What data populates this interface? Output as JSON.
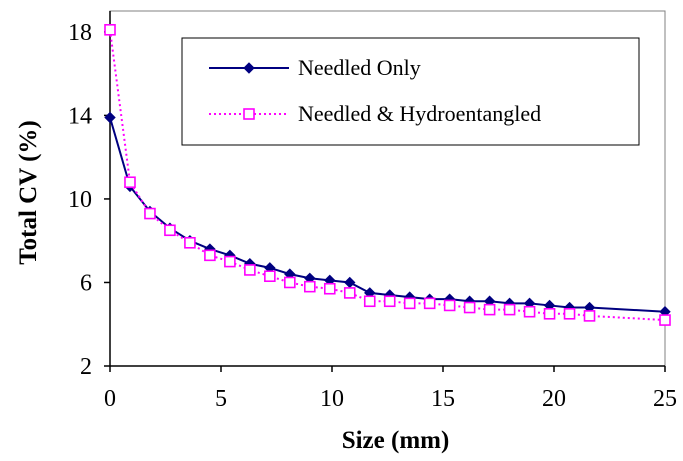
{
  "chart_data": {
    "type": "line",
    "title": "",
    "xlabel": "Size (mm)",
    "ylabel": "Total CV (%)",
    "xlim": [
      0,
      25
    ],
    "ylim": [
      2,
      19
    ],
    "xticks": [
      0,
      5,
      10,
      15,
      20,
      25
    ],
    "yticks": [
      2,
      6,
      10,
      14,
      18
    ],
    "grid": false,
    "legend_position": "top-right",
    "series": [
      {
        "name": "Needled Only",
        "color": "#000080",
        "marker": "filled-diamond",
        "line_style": "solid",
        "x": [
          0,
          0.9,
          1.8,
          2.7,
          3.6,
          4.5,
          5.4,
          6.3,
          7.2,
          8.1,
          9.0,
          9.9,
          10.8,
          11.7,
          12.6,
          13.5,
          14.4,
          15.3,
          16.2,
          17.1,
          18.0,
          18.9,
          19.8,
          20.7,
          21.6,
          25.0
        ],
        "y": [
          13.9,
          10.6,
          9.4,
          8.6,
          8.0,
          7.6,
          7.3,
          6.9,
          6.7,
          6.4,
          6.2,
          6.1,
          6.0,
          5.5,
          5.4,
          5.3,
          5.2,
          5.2,
          5.1,
          5.1,
          5.0,
          5.0,
          4.9,
          4.8,
          4.8,
          4.6
        ]
      },
      {
        "name": "Needled & Hydroentangled",
        "color": "#ff00ff",
        "marker": "open-square",
        "line_style": "dotted",
        "x": [
          0,
          0.9,
          1.8,
          2.7,
          3.6,
          4.5,
          5.4,
          6.3,
          7.2,
          8.1,
          9.0,
          9.9,
          10.8,
          11.7,
          12.6,
          13.5,
          14.4,
          15.3,
          16.2,
          17.1,
          18.0,
          18.9,
          19.8,
          20.7,
          21.6,
          25.0
        ],
        "y": [
          18.1,
          10.8,
          9.3,
          8.5,
          7.9,
          7.3,
          7.0,
          6.6,
          6.3,
          6.0,
          5.8,
          5.7,
          5.5,
          5.1,
          5.1,
          5.0,
          5.0,
          4.9,
          4.8,
          4.7,
          4.7,
          4.6,
          4.5,
          4.5,
          4.4,
          4.2
        ]
      }
    ]
  }
}
